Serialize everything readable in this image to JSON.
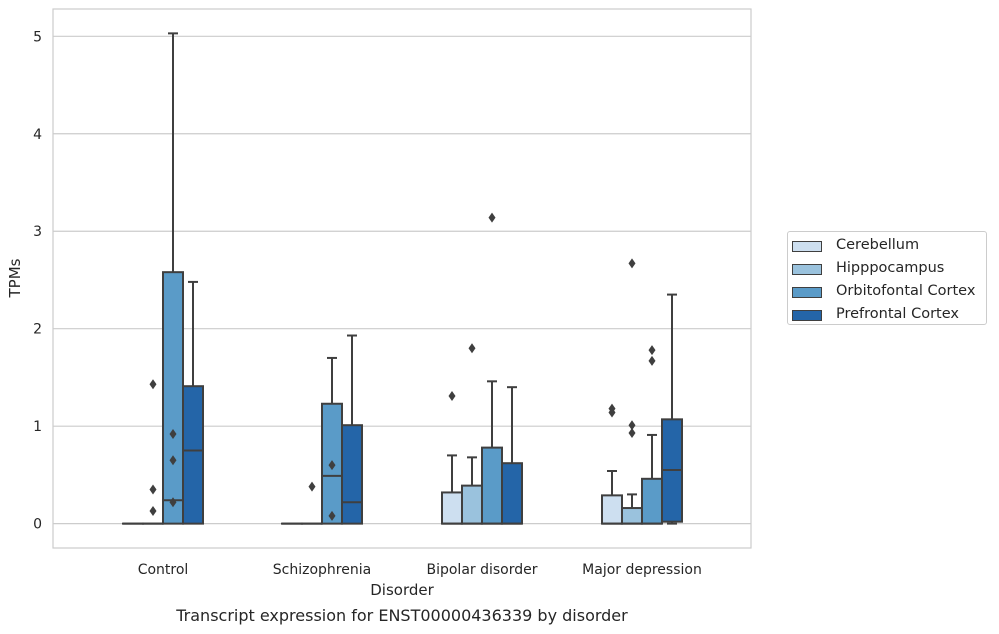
{
  "chart_data": {
    "type": "boxplot",
    "title": "Transcript expression for ENST00000436339 by disorder",
    "xlabel": "Disorder",
    "ylabel": "TPMs",
    "ylim": [
      -0.25,
      5.28
    ],
    "yticks": [
      0,
      1,
      2,
      3,
      4,
      5
    ],
    "grid": true,
    "legend_position": "right",
    "categories": [
      "Control",
      "Schizophrenia",
      "Bipolar disorder",
      "Major depression"
    ],
    "series": [
      {
        "name": "Cerebellum",
        "color": "#cddff0",
        "boxes": [
          {
            "q1": 0,
            "median": 0,
            "q3": 0,
            "whisker_low": 0,
            "whisker_high": 0,
            "outliers": []
          },
          {
            "q1": 0,
            "median": 0,
            "q3": 0,
            "whisker_low": 0,
            "whisker_high": 0,
            "outliers": []
          },
          {
            "q1": 0,
            "median": 0,
            "q3": 0.32,
            "whisker_low": 0,
            "whisker_high": 0.7,
            "outliers": [
              1.31
            ]
          },
          {
            "q1": 0,
            "median": 0,
            "q3": 0.29,
            "whisker_low": 0,
            "whisker_high": 0.54,
            "outliers": [
              1.14,
              1.18
            ]
          }
        ]
      },
      {
        "name": "Hipppocampus",
        "color": "#9ac2dd",
        "boxes": [
          {
            "q1": 0,
            "median": 0,
            "q3": 0,
            "whisker_low": 0,
            "whisker_high": 0,
            "outliers": [
              1.43,
              0.35,
              0.13
            ]
          },
          {
            "q1": 0,
            "median": 0,
            "q3": 0,
            "whisker_low": 0,
            "whisker_high": 0,
            "outliers": [
              0.38
            ]
          },
          {
            "q1": 0,
            "median": 0,
            "q3": 0.39,
            "whisker_low": 0,
            "whisker_high": 0.68,
            "outliers": [
              1.8
            ]
          },
          {
            "q1": 0,
            "median": 0,
            "q3": 0.16,
            "whisker_low": 0,
            "whisker_high": 0.3,
            "outliers": [
              0.93,
              1.01,
              2.67
            ]
          }
        ]
      },
      {
        "name": "Orbitofontal Cortex",
        "color": "#5a9bc8",
        "boxes": [
          {
            "q1": 0,
            "median": 0.24,
            "q3": 2.58,
            "whisker_low": 0,
            "whisker_high": 5.03,
            "outliers": [
              0.92,
              0.65,
              0.22
            ]
          },
          {
            "q1": 0,
            "median": 0.49,
            "q3": 1.23,
            "whisker_low": 0,
            "whisker_high": 1.7,
            "outliers": [
              0.6,
              0.08
            ]
          },
          {
            "q1": 0,
            "median": 0,
            "q3": 0.78,
            "whisker_low": 0,
            "whisker_high": 1.46,
            "outliers": [
              3.14
            ]
          },
          {
            "q1": 0,
            "median": 0,
            "q3": 0.46,
            "whisker_low": 0,
            "whisker_high": 0.91,
            "outliers": [
              1.67,
              1.78
            ]
          }
        ]
      },
      {
        "name": "Prefrontal Cortex",
        "color": "#2465a8",
        "boxes": [
          {
            "q1": 0,
            "median": 0.75,
            "q3": 1.41,
            "whisker_low": 0,
            "whisker_high": 2.48,
            "outliers": []
          },
          {
            "q1": 0,
            "median": 0.22,
            "q3": 1.01,
            "whisker_low": 0,
            "whisker_high": 1.93,
            "outliers": []
          },
          {
            "q1": 0,
            "median": 0,
            "q3": 0.62,
            "whisker_low": 0,
            "whisker_high": 1.4,
            "outliers": []
          },
          {
            "q1": 0.02,
            "median": 0.55,
            "q3": 1.07,
            "whisker_low": 0,
            "whisker_high": 2.35,
            "outliers": []
          }
        ]
      }
    ]
  }
}
